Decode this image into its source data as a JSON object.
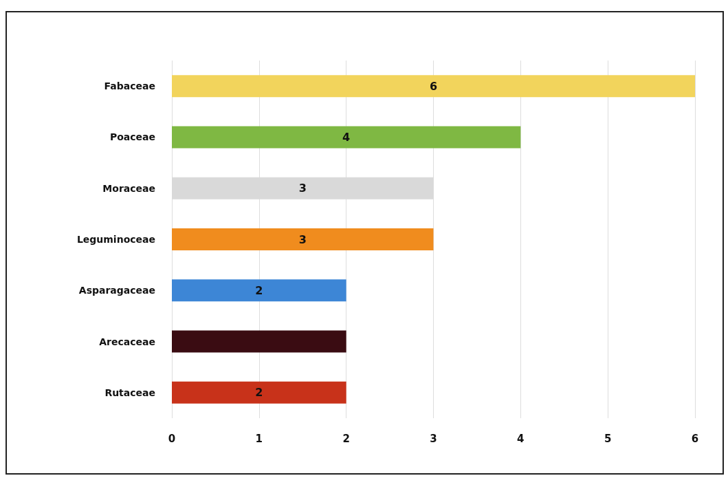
{
  "chart_data": {
    "type": "bar",
    "orientation": "horizontal",
    "categories": [
      "Fabaceae",
      "Poaceae",
      "Moraceae",
      "Leguminoceae",
      "Asparagaceae",
      "Arecaceae",
      "Rutaceae"
    ],
    "values": [
      6,
      4,
      3,
      3,
      2,
      2,
      2
    ],
    "colors": [
      "#f2d45c",
      "#7fb843",
      "#d9d9d9",
      "#f08c1e",
      "#3d86d6",
      "#3a0c12",
      "#c8321a"
    ],
    "value_labels": [
      "6",
      "4",
      "3",
      "3",
      "2",
      null,
      "2"
    ],
    "xlim": [
      0,
      6
    ],
    "xticks": [
      0,
      1,
      2,
      3,
      4,
      5,
      6
    ],
    "grid": "x"
  }
}
